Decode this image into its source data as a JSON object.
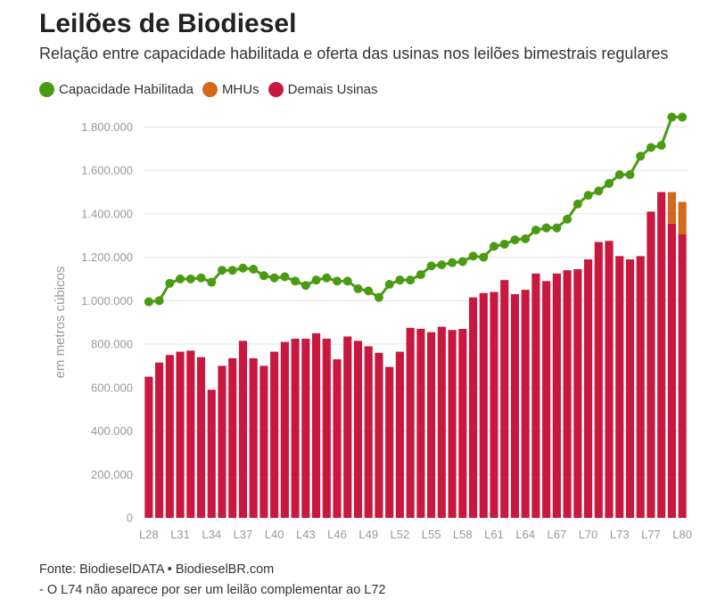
{
  "title": "Leilões de Biodiesel",
  "subtitle": "Relação entre capacidade habilitada e oferta das usinas nos leilões bimestrais regulares",
  "legend": [
    {
      "label": "Capacidade Habilitada",
      "color": "#4a9b12"
    },
    {
      "label": "MHUs",
      "color": "#d26a1b"
    },
    {
      "label": "Demais Usinas",
      "color": "#c8183f"
    }
  ],
  "footer": {
    "source": "Fonte: BiodieselDATA • BiodieselBR.com",
    "note": "- O L74 não aparece por ser um leilão complementar ao L72"
  },
  "chart_data": {
    "type": "bar",
    "ylabel": "em metros cúbicos",
    "ylim": [
      0,
      1900000
    ],
    "yticks": [
      0,
      200000,
      400000,
      600000,
      800000,
      1000000,
      1200000,
      1400000,
      1600000,
      1800000
    ],
    "ytick_labels": [
      "0",
      "200.000",
      "400.000",
      "600.000",
      "800.000",
      "1.000.000",
      "1.200.000",
      "1.400.000",
      "1.600.000",
      "1.800.000"
    ],
    "xtick_labels": [
      "L28",
      "L31",
      "L34",
      "L37",
      "L40",
      "L43",
      "L46",
      "L49",
      "L52",
      "L55",
      "L58",
      "L61",
      "L64",
      "L67",
      "L70",
      "L73",
      "L77",
      "L80"
    ],
    "xtick_every": 3,
    "categories": [
      "L28",
      "L29",
      "L30",
      "L31",
      "L32",
      "L33",
      "L34",
      "L35",
      "L36",
      "L37",
      "L38",
      "L39",
      "L40",
      "L41",
      "L42",
      "L43",
      "L44",
      "L45",
      "L46",
      "L47",
      "L48",
      "L49",
      "L50",
      "L51",
      "L52",
      "L53",
      "L54",
      "L55",
      "L56",
      "L57",
      "L58",
      "L59",
      "L60",
      "L61",
      "L62",
      "L63",
      "L64",
      "L65",
      "L66",
      "L67",
      "L68",
      "L69",
      "L70",
      "L71",
      "L72",
      "L73",
      "L75",
      "L76",
      "L77",
      "L78",
      "L79",
      "L80"
    ],
    "stacked": true,
    "grid": true,
    "series": [
      {
        "name": "Demais Usinas",
        "kind": "bar",
        "color": "#c8183f",
        "values": [
          650000,
          715000,
          750000,
          765000,
          770000,
          740000,
          590000,
          700000,
          735000,
          815000,
          735000,
          700000,
          765000,
          810000,
          825000,
          825000,
          850000,
          825000,
          730000,
          835000,
          815000,
          790000,
          760000,
          695000,
          765000,
          875000,
          870000,
          855000,
          880000,
          865000,
          870000,
          1015000,
          1035000,
          1040000,
          1095000,
          1030000,
          1050000,
          1125000,
          1090000,
          1125000,
          1140000,
          1145000,
          1190000,
          1270000,
          1275000,
          1205000,
          1190000,
          1205000,
          1410000,
          1500000,
          1355000,
          1305000
        ]
      },
      {
        "name": "MHUs",
        "kind": "bar",
        "color": "#d26a1b",
        "values": [
          0,
          0,
          0,
          0,
          0,
          0,
          0,
          0,
          0,
          0,
          0,
          0,
          0,
          0,
          0,
          0,
          0,
          0,
          0,
          0,
          0,
          0,
          0,
          0,
          0,
          0,
          0,
          0,
          0,
          0,
          0,
          0,
          0,
          0,
          0,
          0,
          0,
          0,
          0,
          0,
          0,
          0,
          0,
          0,
          0,
          0,
          0,
          0,
          0,
          0,
          145000,
          150000
        ]
      },
      {
        "name": "Capacidade Habilitada",
        "kind": "line",
        "color": "#4a9b12",
        "values": [
          995000,
          1000000,
          1080000,
          1100000,
          1100000,
          1105000,
          1085000,
          1140000,
          1140000,
          1150000,
          1145000,
          1115000,
          1105000,
          1110000,
          1090000,
          1070000,
          1095000,
          1105000,
          1090000,
          1090000,
          1055000,
          1045000,
          1015000,
          1075000,
          1095000,
          1095000,
          1120000,
          1160000,
          1165000,
          1175000,
          1180000,
          1205000,
          1200000,
          1250000,
          1260000,
          1280000,
          1285000,
          1325000,
          1335000,
          1335000,
          1375000,
          1445000,
          1485000,
          1505000,
          1540000,
          1580000,
          1580000,
          1665000,
          1705000,
          1715000,
          1845000,
          1845000
        ]
      }
    ]
  }
}
